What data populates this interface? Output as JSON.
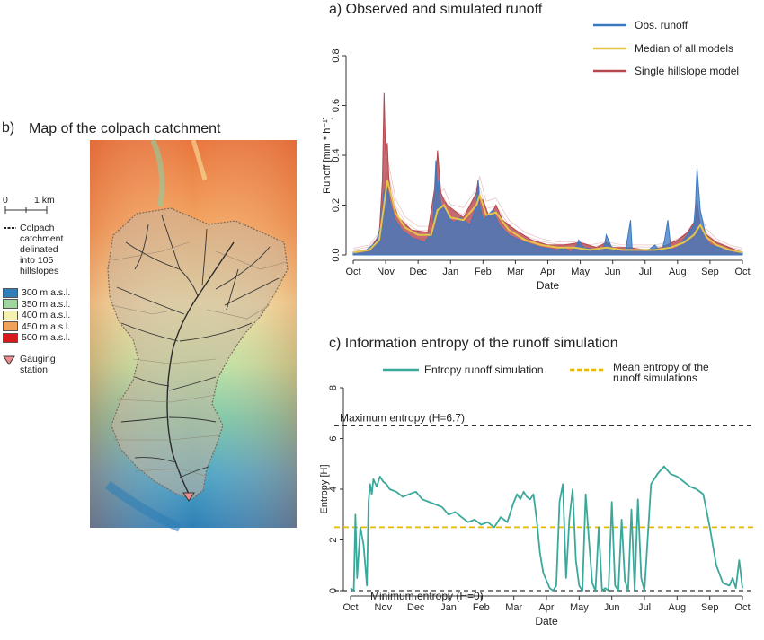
{
  "panel_a": {
    "title": "a) Observed and simulated runoff",
    "legend": [
      "Obs. runoff",
      "Median of all models",
      "Single hillslope model"
    ]
  },
  "panel_b": {
    "panel_label": "b)",
    "title": "Map of the colpach catchment",
    "scale_labels": [
      "0",
      "1 km"
    ],
    "catchment_label_lines": [
      "Colpach",
      "catchment",
      "delinated",
      "into 105",
      "hillslopes"
    ],
    "elevation_legend": [
      {
        "label": "300 m a.s.l.",
        "color": "#2f7fb6"
      },
      {
        "label": "350 m a.s.l.",
        "color": "#9fd59f"
      },
      {
        "label": "400 m a.s.l.",
        "color": "#f4f2b0"
      },
      {
        "label": "450 m a.s.l.",
        "color": "#f0a25a"
      },
      {
        "label": "500 m a.s.l.",
        "color": "#d7191c"
      }
    ],
    "gauging_label_lines": [
      "Gauging",
      "station"
    ]
  },
  "panel_c": {
    "title": "c) Information entropy of the runoff simulation",
    "legend": [
      "Entropy runoff simulation",
      "Mean entropy of the runoff simulations"
    ],
    "max_label": "Maximum entropy (H=6.7)",
    "min_label": "Minimum entropy (H=0)"
  },
  "colors": {
    "obs": "#3a78c2",
    "median": "#e6c44a",
    "single": "#b5474e",
    "entropy": "#3aa89a",
    "mean_entropy": "#e8b800",
    "ref_lines": "#333333"
  },
  "chart_data": [
    {
      "type": "line",
      "title": "a) Observed and simulated runoff",
      "xlabel": "Date",
      "ylabel": "Runoff [mm * h⁻¹]",
      "x_ticks": [
        "Oct",
        "Nov",
        "Dec",
        "Jan",
        "Feb",
        "Mar",
        "Apr",
        "May",
        "Jun",
        "Jul",
        "Aug",
        "Sep",
        "Oct"
      ],
      "y_ticks": [
        "0.0",
        "0.2",
        "0.4",
        "0.6",
        "0.8"
      ],
      "ylim": [
        0,
        0.8
      ],
      "legend_position": "top-right",
      "series": [
        {
          "name": "Obs. runoff",
          "x": [
            0,
            0.4,
            0.7,
            0.85,
            0.9,
            0.95,
            1.05,
            1.15,
            1.3,
            1.5,
            1.8,
            2.2,
            2.45,
            2.55,
            2.6,
            2.65,
            2.7,
            2.85,
            3.0,
            3.1,
            3.3,
            3.6,
            3.8,
            3.85,
            3.9,
            4.0,
            4.3,
            4.5,
            4.8,
            5.3,
            5.8,
            6.3,
            6.5,
            6.7,
            6.9,
            6.95,
            7.1,
            7.5,
            7.7,
            7.75,
            7.8,
            8.0,
            8.4,
            8.5,
            8.55,
            8.6,
            8.8,
            9.0,
            9.3,
            9.5,
            9.6,
            9.7,
            9.8,
            10.0,
            10.3,
            10.5,
            10.55,
            10.6,
            10.7,
            10.9,
            11.0,
            11.3,
            11.6,
            12.0
          ],
          "values": [
            0.01,
            0.02,
            0.05,
            0.12,
            0.2,
            0.26,
            0.27,
            0.2,
            0.14,
            0.1,
            0.07,
            0.05,
            0.1,
            0.38,
            0.25,
            0.3,
            0.2,
            0.18,
            0.14,
            0.13,
            0.15,
            0.12,
            0.2,
            0.3,
            0.2,
            0.14,
            0.18,
            0.12,
            0.08,
            0.05,
            0.03,
            0.02,
            0.03,
            0.01,
            0.04,
            0.06,
            0.03,
            0.02,
            0.03,
            0.04,
            0.08,
            0.02,
            0.02,
            0.1,
            0.14,
            0.02,
            0.02,
            0.01,
            0.04,
            0.01,
            0.06,
            0.14,
            0.02,
            0.03,
            0.08,
            0.12,
            0.2,
            0.35,
            0.18,
            0.06,
            0.04,
            0.03,
            0.02,
            0.01
          ]
        },
        {
          "name": "Median of all models",
          "x": [
            0,
            0.5,
            0.8,
            0.95,
            1.05,
            1.15,
            1.3,
            1.6,
            2.0,
            2.4,
            2.6,
            2.8,
            3.0,
            3.4,
            3.8,
            3.9,
            4.1,
            4.4,
            4.8,
            5.3,
            5.8,
            6.3,
            6.8,
            7.3,
            7.8,
            8.3,
            8.8,
            9.3,
            9.8,
            10.2,
            10.5,
            10.7,
            10.9,
            11.2,
            11.6,
            12.0
          ],
          "values": [
            0.01,
            0.02,
            0.06,
            0.2,
            0.3,
            0.25,
            0.17,
            0.11,
            0.08,
            0.08,
            0.18,
            0.2,
            0.15,
            0.14,
            0.2,
            0.24,
            0.16,
            0.17,
            0.1,
            0.06,
            0.04,
            0.03,
            0.03,
            0.02,
            0.03,
            0.02,
            0.02,
            0.02,
            0.03,
            0.05,
            0.08,
            0.12,
            0.07,
            0.04,
            0.02,
            0.01
          ]
        },
        {
          "name": "Single hillslope model",
          "x": [
            0,
            0.5,
            0.8,
            0.9,
            0.95,
            1.0,
            1.05,
            1.1,
            1.2,
            1.4,
            1.8,
            2.3,
            2.55,
            2.6,
            2.7,
            2.8,
            2.9,
            3.1,
            3.4,
            3.8,
            3.85,
            3.9,
            4.0,
            4.2,
            4.4,
            4.6,
            5.0,
            5.5,
            6.0,
            6.5,
            7.0,
            7.5,
            7.8,
            8.0,
            8.5,
            9.0,
            9.5,
            10.0,
            10.3,
            10.55,
            10.6,
            10.7,
            10.9,
            11.2,
            11.6,
            12.0
          ],
          "values": [
            0.01,
            0.02,
            0.08,
            0.3,
            0.65,
            0.4,
            0.45,
            0.3,
            0.22,
            0.15,
            0.1,
            0.09,
            0.3,
            0.42,
            0.25,
            0.22,
            0.2,
            0.18,
            0.15,
            0.25,
            0.3,
            0.23,
            0.22,
            0.15,
            0.2,
            0.14,
            0.1,
            0.06,
            0.04,
            0.04,
            0.05,
            0.03,
            0.05,
            0.03,
            0.03,
            0.02,
            0.03,
            0.06,
            0.09,
            0.14,
            0.22,
            0.12,
            0.08,
            0.05,
            0.03,
            0.01
          ]
        }
      ]
    },
    {
      "type": "line",
      "title": "c) Information entropy of the runoff simulation",
      "xlabel": "Date",
      "ylabel": "Entropy [H]",
      "x_ticks": [
        "Oct",
        "Nov",
        "Dec",
        "Jan",
        "Feb",
        "Mar",
        "Apr",
        "May",
        "Jun",
        "Jul",
        "Aug",
        "Sep",
        "Oct"
      ],
      "y_ticks": [
        "0",
        "2",
        "4",
        "6",
        "8"
      ],
      "ylim": [
        0,
        8
      ],
      "legend_position": "top",
      "reference_lines": [
        {
          "label": "Maximum entropy (H=6.7)",
          "y": 6.7
        },
        {
          "label": "Minimum entropy (H=0)",
          "y": 0
        },
        {
          "label": "Mean entropy of the runoff simulations",
          "y": 2.5
        }
      ],
      "series": [
        {
          "name": "Entropy runoff simulation",
          "x": [
            0,
            0.1,
            0.15,
            0.2,
            0.3,
            0.4,
            0.5,
            0.55,
            0.6,
            0.65,
            0.7,
            0.8,
            0.9,
            1.0,
            1.1,
            1.2,
            1.4,
            1.6,
            1.8,
            2.0,
            2.2,
            2.4,
            2.6,
            2.8,
            3.0,
            3.2,
            3.4,
            3.6,
            3.8,
            4.0,
            4.2,
            4.4,
            4.6,
            4.8,
            5.0,
            5.1,
            5.2,
            5.3,
            5.4,
            5.5,
            5.6,
            5.7,
            5.8,
            5.9,
            6.0,
            6.1,
            6.2,
            6.3,
            6.4,
            6.5,
            6.6,
            6.7,
            6.8,
            6.9,
            7.0,
            7.1,
            7.2,
            7.3,
            7.4,
            7.5,
            7.6,
            7.7,
            7.8,
            7.9,
            8.0,
            8.1,
            8.2,
            8.3,
            8.4,
            8.5,
            8.6,
            8.7,
            8.8,
            8.9,
            9.0,
            9.2,
            9.4,
            9.6,
            9.8,
            10.0,
            10.2,
            10.4,
            10.6,
            10.8,
            11.0,
            11.2,
            11.4,
            11.6,
            11.7,
            11.8,
            11.9,
            12.0
          ],
          "values": [
            0.1,
            0,
            3.0,
            0.5,
            2.5,
            1.8,
            0.2,
            3.5,
            4.2,
            3.8,
            4.4,
            4.1,
            4.5,
            4.3,
            4.2,
            4.0,
            3.9,
            3.7,
            3.8,
            3.9,
            3.6,
            3.5,
            3.4,
            3.3,
            3.0,
            3.1,
            2.9,
            2.7,
            2.8,
            2.6,
            2.7,
            2.5,
            2.9,
            2.7,
            3.5,
            3.8,
            3.6,
            3.9,
            3.7,
            3.6,
            3.8,
            2.8,
            1.5,
            0.7,
            0.4,
            0.1,
            0.0,
            0.2,
            3.5,
            4.2,
            0.5,
            2.8,
            4.0,
            1.2,
            0.2,
            0.0,
            3.8,
            2.0,
            0.3,
            0.0,
            2.5,
            0.0,
            0.1,
            0.0,
            3.5,
            0.2,
            0.0,
            2.8,
            0.4,
            0.0,
            3.2,
            0.0,
            3.6,
            0.5,
            0.0,
            4.2,
            4.6,
            4.9,
            4.6,
            4.5,
            4.3,
            4.1,
            4.0,
            3.8,
            2.5,
            1.0,
            0.3,
            0.2,
            0.5,
            0.1,
            1.2,
            0.1
          ]
        }
      ]
    }
  ]
}
